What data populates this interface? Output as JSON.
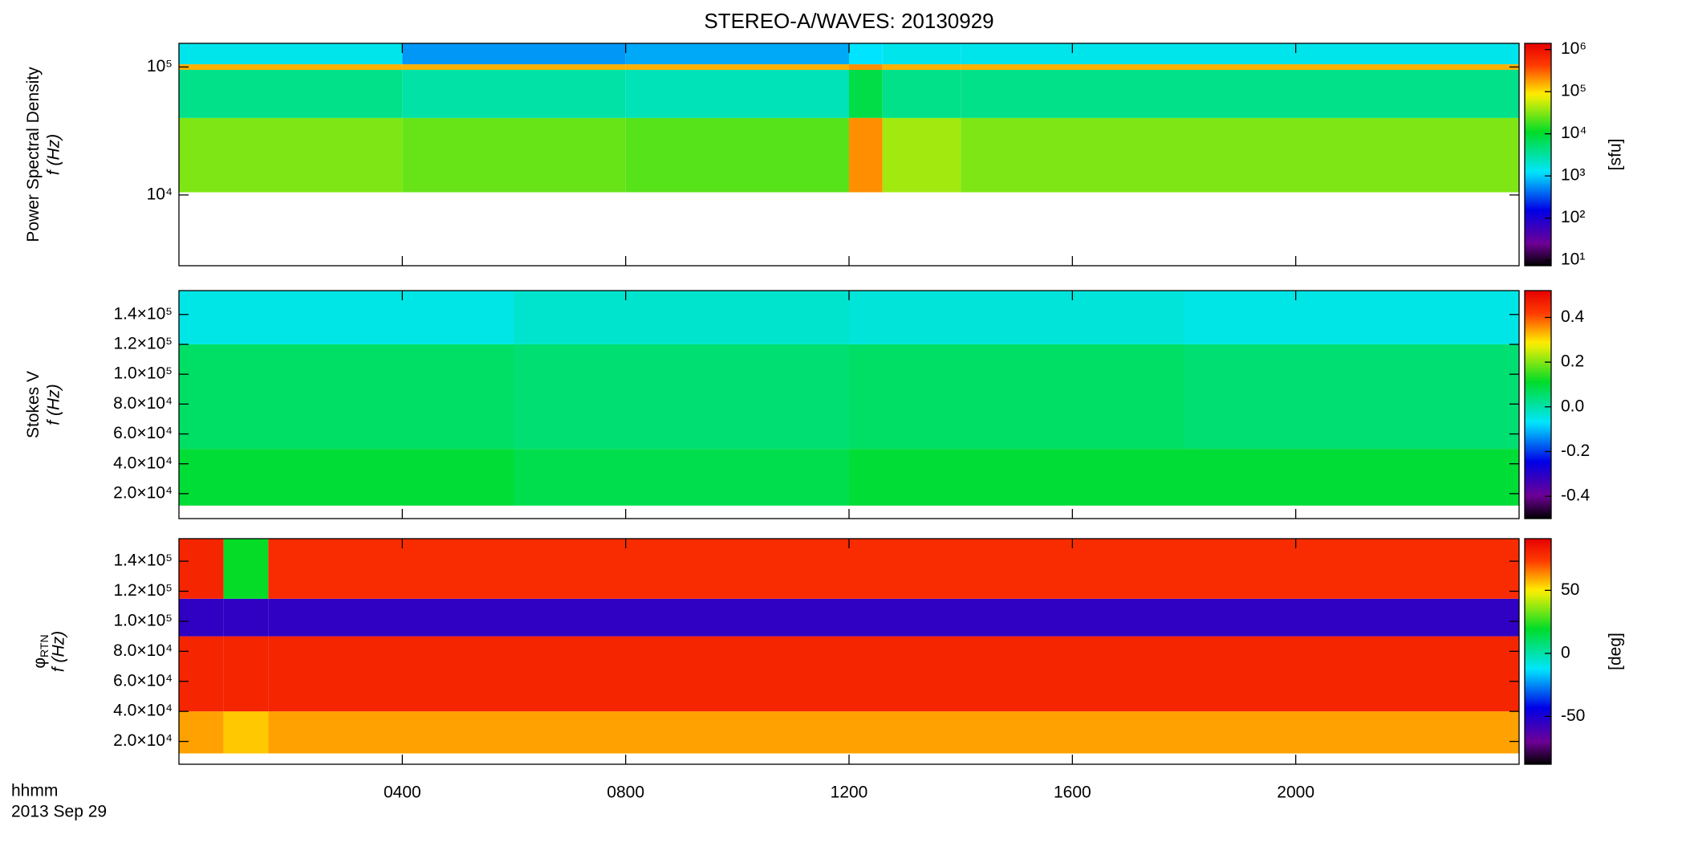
{
  "title": "STEREO-A/WAVES: 20130929",
  "x_label": "hhmm",
  "date_label": "2013 Sep 29",
  "chart_data": [
    {
      "type": "heatmap",
      "ylabel": "Power Spectral Density",
      "ylabel2": "f (Hz)",
      "ylog": true,
      "xlim": [
        0,
        24
      ],
      "xticks": [
        {
          "value": 4,
          "label": "0400"
        },
        {
          "value": 8,
          "label": "0800"
        },
        {
          "value": 12,
          "label": "1200"
        },
        {
          "value": 16,
          "label": "1600"
        },
        {
          "value": 20,
          "label": "2000"
        }
      ],
      "ylim": [
        2800,
        153000
      ],
      "yticks": [
        {
          "value": 10000,
          "label": "10⁴"
        },
        {
          "value": 100000,
          "label": "10⁵"
        }
      ],
      "x_bins": [
        0,
        4,
        8,
        12,
        12.6,
        14,
        24
      ],
      "y_bins": [
        10500,
        40000,
        95000,
        105000,
        153000
      ],
      "values": [
        [
          30000,
          25000,
          22000,
          200000,
          40000,
          30000
        ],
        [
          4000,
          3000,
          2500,
          8000,
          4000,
          4000
        ],
        [
          150000,
          150000,
          150000,
          200000,
          150000,
          150000
        ],
        [
          1500,
          600,
          700,
          1200,
          1500,
          1500
        ]
      ],
      "clog": true,
      "clim": [
        7.4,
        1400000
      ],
      "colorbar_label": "[sfu]",
      "cticks": [
        {
          "value": 10,
          "label": "10¹"
        },
        {
          "value": 100,
          "label": "10²"
        },
        {
          "value": 1000,
          "label": "10³"
        },
        {
          "value": 10000,
          "label": "10⁴"
        },
        {
          "value": 100000,
          "label": "10⁵"
        },
        {
          "value": 1000000,
          "label": "10⁶"
        }
      ]
    },
    {
      "type": "heatmap",
      "ylabel": "Stokes V",
      "ylabel2": "f (Hz)",
      "ylog": false,
      "xlim": [
        0,
        24
      ],
      "ylim": [
        3300,
        156000
      ],
      "yticks": [
        {
          "value": 20000,
          "label": "2.0×10⁴"
        },
        {
          "value": 40000,
          "label": "4.0×10⁴"
        },
        {
          "value": 60000,
          "label": "6.0×10⁴"
        },
        {
          "value": 80000,
          "label": "8.0×10⁴"
        },
        {
          "value": 100000,
          "label": "1.0×10⁵"
        },
        {
          "value": 120000,
          "label": "1.2×10⁵"
        },
        {
          "value": 140000,
          "label": "1.4×10⁵"
        }
      ],
      "x_bins": [
        0,
        6,
        12,
        18,
        24
      ],
      "y_bins": [
        12000,
        50000,
        120000,
        156000
      ],
      "values": [
        [
          0.1,
          0.08,
          0.1,
          0.1
        ],
        [
          0.06,
          0.05,
          0.06,
          0.05
        ],
        [
          -0.05,
          -0.03,
          -0.04,
          -0.05
        ]
      ],
      "clog": false,
      "clim": [
        -0.5,
        0.52
      ],
      "cticks": [
        -0.4,
        -0.2,
        {
          "value": 0,
          "label": "0.0"
        },
        0.2,
        0.4
      ]
    },
    {
      "type": "heatmap",
      "ylabel": "φ",
      "ylabel_sub": "RTN",
      "ylabel2": "f (Hz)",
      "ylog": false,
      "xlim": [
        0,
        24
      ],
      "ylim": [
        4800,
        155000
      ],
      "yticks": [
        {
          "value": 20000,
          "label": "2.0×10⁴"
        },
        {
          "value": 40000,
          "label": "4.0×10⁴"
        },
        {
          "value": 60000,
          "label": "6.0×10⁴"
        },
        {
          "value": 80000,
          "label": "8.0×10⁴"
        },
        {
          "value": 100000,
          "label": "1.0×10⁵"
        },
        {
          "value": 120000,
          "label": "1.2×10⁵"
        },
        {
          "value": 140000,
          "label": "1.4×10⁵"
        }
      ],
      "x_bins": [
        0,
        0.8,
        1.6,
        24
      ],
      "y_bins": [
        12000,
        40000,
        90000,
        115000,
        155000
      ],
      "values": [
        [
          60,
          55,
          60
        ],
        [
          80,
          80,
          80
        ],
        [
          -55,
          -55,
          -55
        ],
        [
          80,
          20,
          78
        ]
      ],
      "clog": false,
      "clim": [
        -88,
        91
      ],
      "colorbar_label": "[deg]",
      "cticks": [
        -50,
        0,
        50
      ]
    }
  ]
}
